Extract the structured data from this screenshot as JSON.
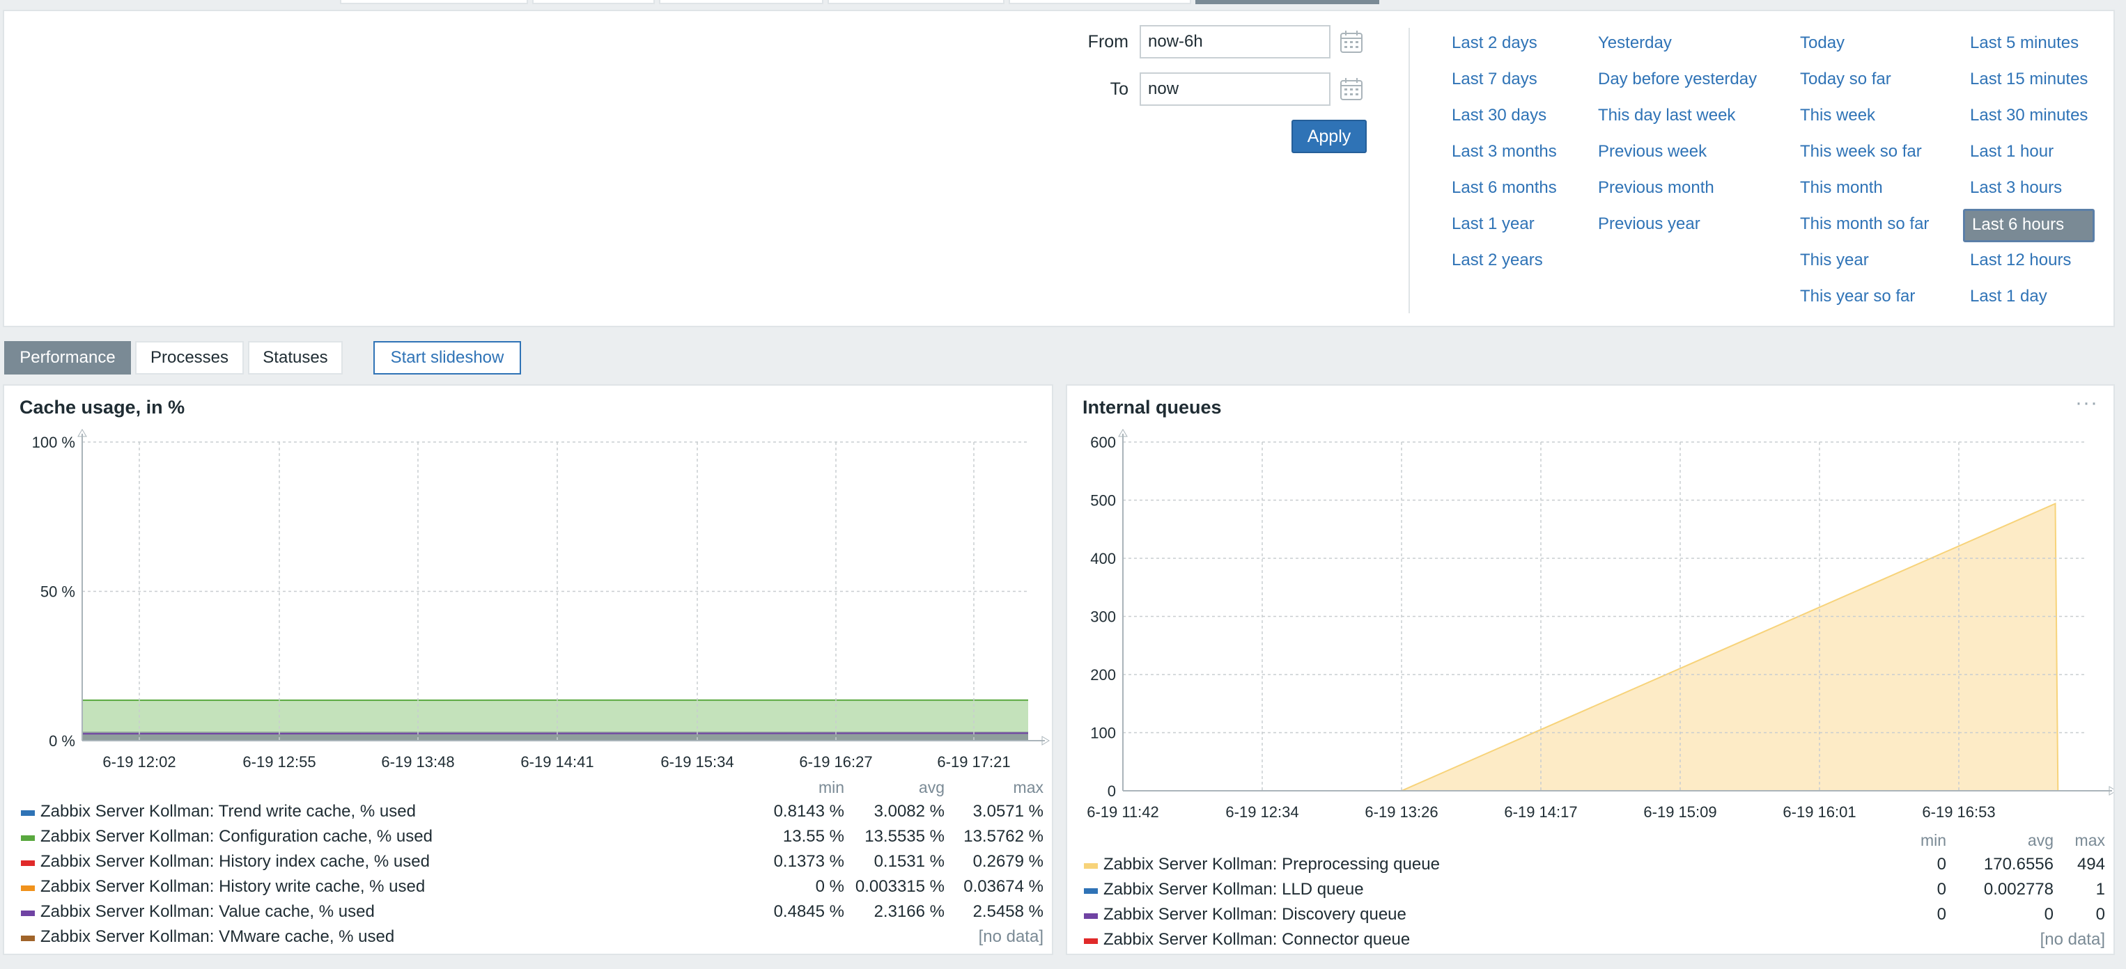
{
  "filter": {
    "from_label": "From",
    "from_value": "now-6h",
    "to_label": "To",
    "to_value": "now",
    "apply_label": "Apply",
    "quick_ranges": [
      [
        "Last 2 days",
        "Last 7 days",
        "Last 30 days",
        "Last 3 months",
        "Last 6 months",
        "Last 1 year",
        "Last 2 years"
      ],
      [
        "Yesterday",
        "Day before yesterday",
        "This day last week",
        "Previous week",
        "Previous month",
        "Previous year"
      ],
      [
        "Today",
        "Today so far",
        "This week",
        "This week so far",
        "This month",
        "This month so far",
        "This year",
        "This year so far"
      ],
      [
        "Last 5 minutes",
        "Last 15 minutes",
        "Last 30 minutes",
        "Last 1 hour",
        "Last 3 hours",
        "Last 6 hours",
        "Last 12 hours",
        "Last 1 day"
      ]
    ],
    "active_range": "Last 6 hours"
  },
  "tabs": {
    "performance": "Performance",
    "processes": "Processes",
    "statuses": "Statuses",
    "slideshow": "Start slideshow",
    "active": "Performance"
  },
  "widget1": {
    "title": "Cache usage, in %",
    "legend_head": {
      "min": "min",
      "avg": "avg",
      "max": "max"
    },
    "legend": [
      {
        "color": "#2f73b6",
        "name": "Zabbix Server Kollman: Trend write cache, % used",
        "min": "0.8143 %",
        "avg": "3.0082 %",
        "max": "3.0571 %"
      },
      {
        "color": "#59a83f",
        "name": "Zabbix Server Kollman: Configuration cache, % used",
        "min": "13.55 %",
        "avg": "13.5535 %",
        "max": "13.5762 %"
      },
      {
        "color": "#e02a2a",
        "name": "Zabbix Server Kollman: History index cache, % used",
        "min": "0.1373 %",
        "avg": "0.1531 %",
        "max": "0.2679 %"
      },
      {
        "color": "#f0921c",
        "name": "Zabbix Server Kollman: History write cache, % used",
        "min": "0 %",
        "avg": "0.003315 %",
        "max": "0.03674 %"
      },
      {
        "color": "#7043a3",
        "name": "Zabbix Server Kollman: Value cache, % used",
        "min": "0.4845 %",
        "avg": "2.3166 %",
        "max": "2.5458 %"
      },
      {
        "color": "#a0642a",
        "name": "Zabbix Server Kollman: VMware cache, % used",
        "nodata": "[no data]"
      }
    ]
  },
  "widget2": {
    "title": "Internal queues",
    "menu_icon": "ellipsis-icon",
    "legend_head": {
      "min": "min",
      "avg": "avg",
      "max": "max"
    },
    "legend": [
      {
        "color": "#f7d37a",
        "name": "Zabbix Server Kollman: Preprocessing queue",
        "min": "0",
        "avg": "170.6556",
        "max": "494"
      },
      {
        "color": "#2f73b6",
        "name": "Zabbix Server Kollman: LLD queue",
        "min": "0",
        "avg": "0.002778",
        "max": "1"
      },
      {
        "color": "#7043a3",
        "name": "Zabbix Server Kollman: Discovery queue",
        "min": "0",
        "avg": "0",
        "max": "0"
      },
      {
        "color": "#e02a2a",
        "name": "Zabbix Server Kollman: Connector queue",
        "nodata": "[no data]"
      }
    ]
  },
  "chart_data": [
    {
      "type": "area",
      "x_ticks": [
        "6-19 12:02",
        "6-19 12:55",
        "6-19 13:48",
        "6-19 14:41",
        "6-19 15:34",
        "6-19 16:27",
        "6-19 17:21"
      ],
      "y_ticks": [
        "0 %",
        "50 %",
        "100 %"
      ],
      "ylim": [
        0,
        100
      ],
      "grid": true,
      "series": [
        {
          "name": "Zabbix Server Kollman: Configuration cache, % used",
          "color": "#59a83f",
          "fill": "#c4e2bb",
          "x": [
            "6-19 11:42",
            "6-19 17:42"
          ],
          "values": [
            13.55,
            13.58
          ]
        },
        {
          "name": "Zabbix Server Kollman: Trend write cache, % used",
          "color": "#2f73b6",
          "x": [
            "6-19 11:42",
            "6-19 17:42"
          ],
          "values": [
            3.0,
            3.0
          ]
        },
        {
          "name": "Zabbix Server Kollman: Value cache, % used",
          "color": "#7043a3",
          "x": [
            "6-19 11:42",
            "6-19 17:42"
          ],
          "values": [
            2.3,
            2.5
          ]
        }
      ]
    },
    {
      "type": "area",
      "x_ticks": [
        "6-19 11:42",
        "6-19 12:34",
        "6-19 13:26",
        "6-19 14:17",
        "6-19 15:09",
        "6-19 16:01",
        "6-19 16:53"
      ],
      "y_ticks": [
        "0",
        "100",
        "200",
        "300",
        "400",
        "500",
        "600"
      ],
      "ylim": [
        0,
        600
      ],
      "grid": true,
      "series": [
        {
          "name": "Zabbix Server Kollman: Preprocessing queue",
          "color": "#f7d37a",
          "fill": "#fdebc6",
          "x": [
            "6-19 11:42",
            "6-19 13:26",
            "6-19 17:30",
            "6-19 17:31"
          ],
          "values": [
            0,
            0,
            494,
            0
          ]
        }
      ]
    }
  ]
}
